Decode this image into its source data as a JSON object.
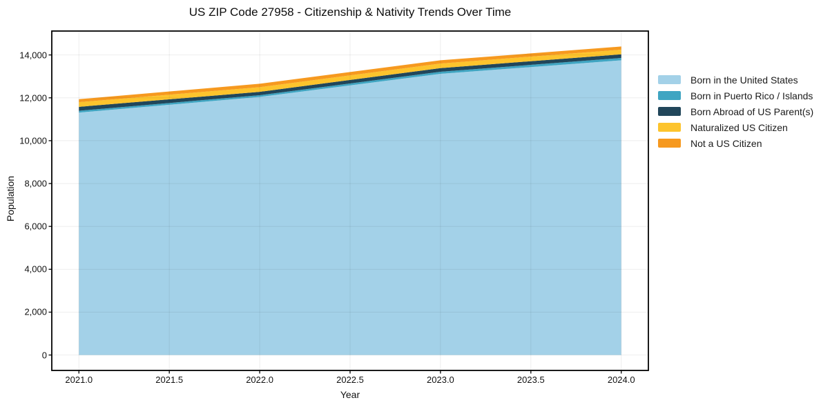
{
  "title": "US ZIP Code 27958 - Citizenship & Nativity Trends Over Time",
  "chart_data": {
    "type": "area",
    "stacked": true,
    "title": "US ZIP Code 27958 - Citizenship & Nativity Trends Over Time",
    "xlabel": "Year",
    "ylabel": "Population",
    "x": [
      2021,
      2022,
      2023,
      2024
    ],
    "series": [
      {
        "name": "Born in the United States",
        "color": "#a3d1e8",
        "values": [
          11310,
          12040,
          13120,
          13750
        ]
      },
      {
        "name": "Born in Puerto Rico / Islands",
        "color": "#3fa5c2",
        "values": [
          85,
          80,
          95,
          110
        ]
      },
      {
        "name": "Born Abroad of US Parent(s)",
        "color": "#21465a",
        "values": [
          185,
          160,
          170,
          170
        ]
      },
      {
        "name": "Naturalized US Citizen",
        "color": "#fdc42d",
        "values": [
          215,
          215,
          215,
          215
        ]
      },
      {
        "name": "Not a US Citizen",
        "color": "#f6991f",
        "values": [
          140,
          160,
          150,
          150
        ]
      }
    ],
    "totals": [
      11935,
      12655,
      13750,
      14395
    ],
    "x_ticks": [
      2021.0,
      2021.5,
      2022.0,
      2022.5,
      2023.0,
      2023.5,
      2024.0
    ],
    "x_tick_labels": [
      "2021.0",
      "2021.5",
      "2022.0",
      "2022.5",
      "2023.0",
      "2023.5",
      "2024.0"
    ],
    "y_ticks": [
      0,
      2000,
      4000,
      6000,
      8000,
      10000,
      12000,
      14000
    ],
    "y_tick_labels": [
      "0",
      "2,000",
      "4,000",
      "6,000",
      "8,000",
      "10,000",
      "12,000",
      "14,000"
    ],
    "xlim": [
      2020.85,
      2024.15
    ],
    "ylim": [
      -720,
      15115
    ],
    "grid": true,
    "grid_color": "rgba(0,0,0,0.07)",
    "border_color": "#000000",
    "background_color": "#ffffff",
    "legend_position": "right"
  }
}
